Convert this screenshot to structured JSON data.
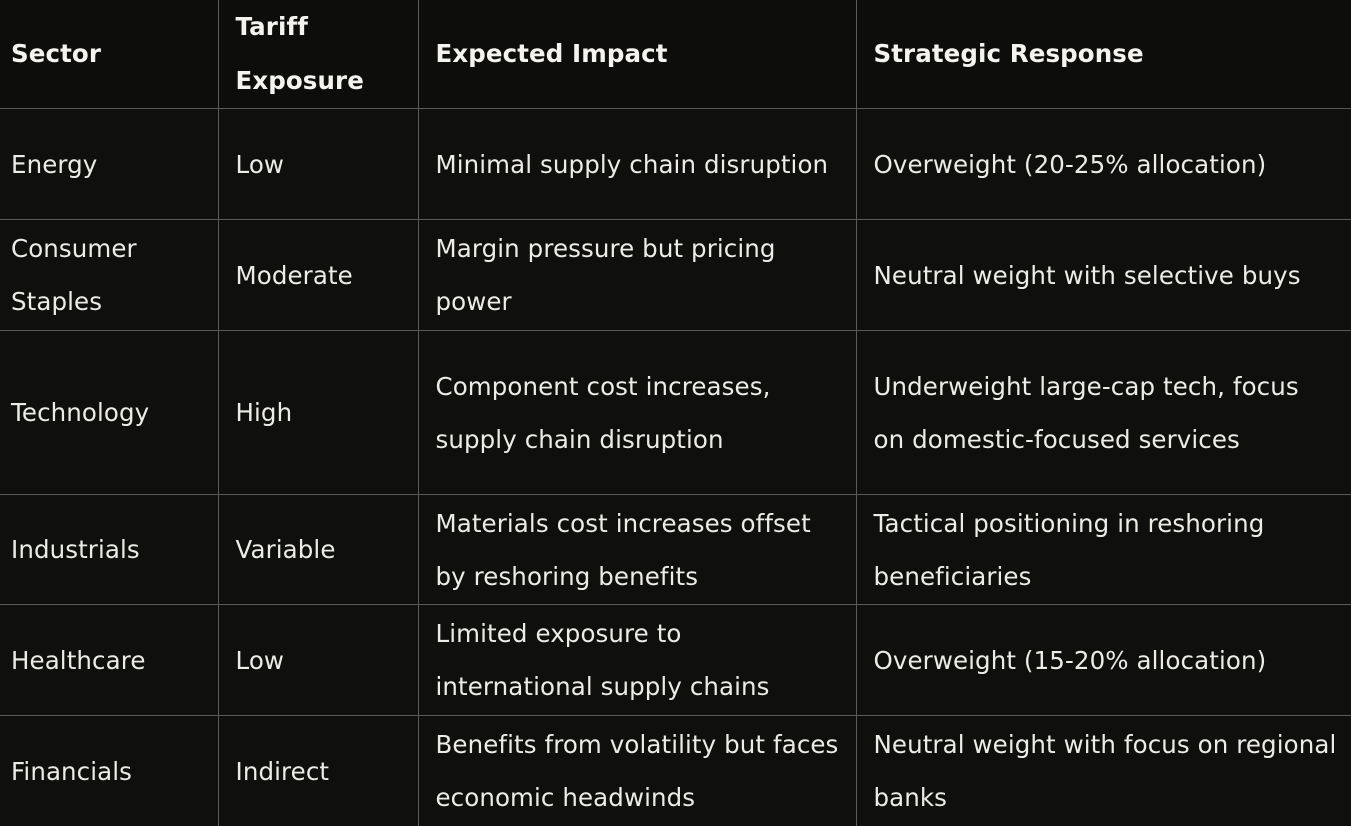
{
  "table": {
    "headers": [
      "Sector",
      "Tariff Exposure",
      "Expected Impact",
      "Strategic Response"
    ],
    "rows": [
      {
        "sector": "Energy",
        "exposure": "Low",
        "impact": "Minimal supply chain disruption",
        "response": "Overweight (20-25% allocation)"
      },
      {
        "sector": "Consumer Staples",
        "exposure": "Moderate",
        "impact": "Margin pressure but pricing power",
        "response": "Neutral weight with selective buys"
      },
      {
        "sector": "Technology",
        "exposure": "High",
        "impact": "Component cost increases, supply chain disruption",
        "response": "Underweight large-cap tech, focus on domestic-focused services"
      },
      {
        "sector": "Industrials",
        "exposure": "Variable",
        "impact": "Materials cost increases offset by reshoring benefits",
        "response": "Tactical positioning in reshoring beneficiaries"
      },
      {
        "sector": "Healthcare",
        "exposure": "Low",
        "impact": "Limited exposure to international supply chains",
        "response": "Overweight (15-20% allocation)"
      },
      {
        "sector": "Financials",
        "exposure": "Indirect",
        "impact": "Benefits from volatility but faces economic headwinds",
        "response": "Neutral weight with focus on regional banks"
      }
    ]
  }
}
